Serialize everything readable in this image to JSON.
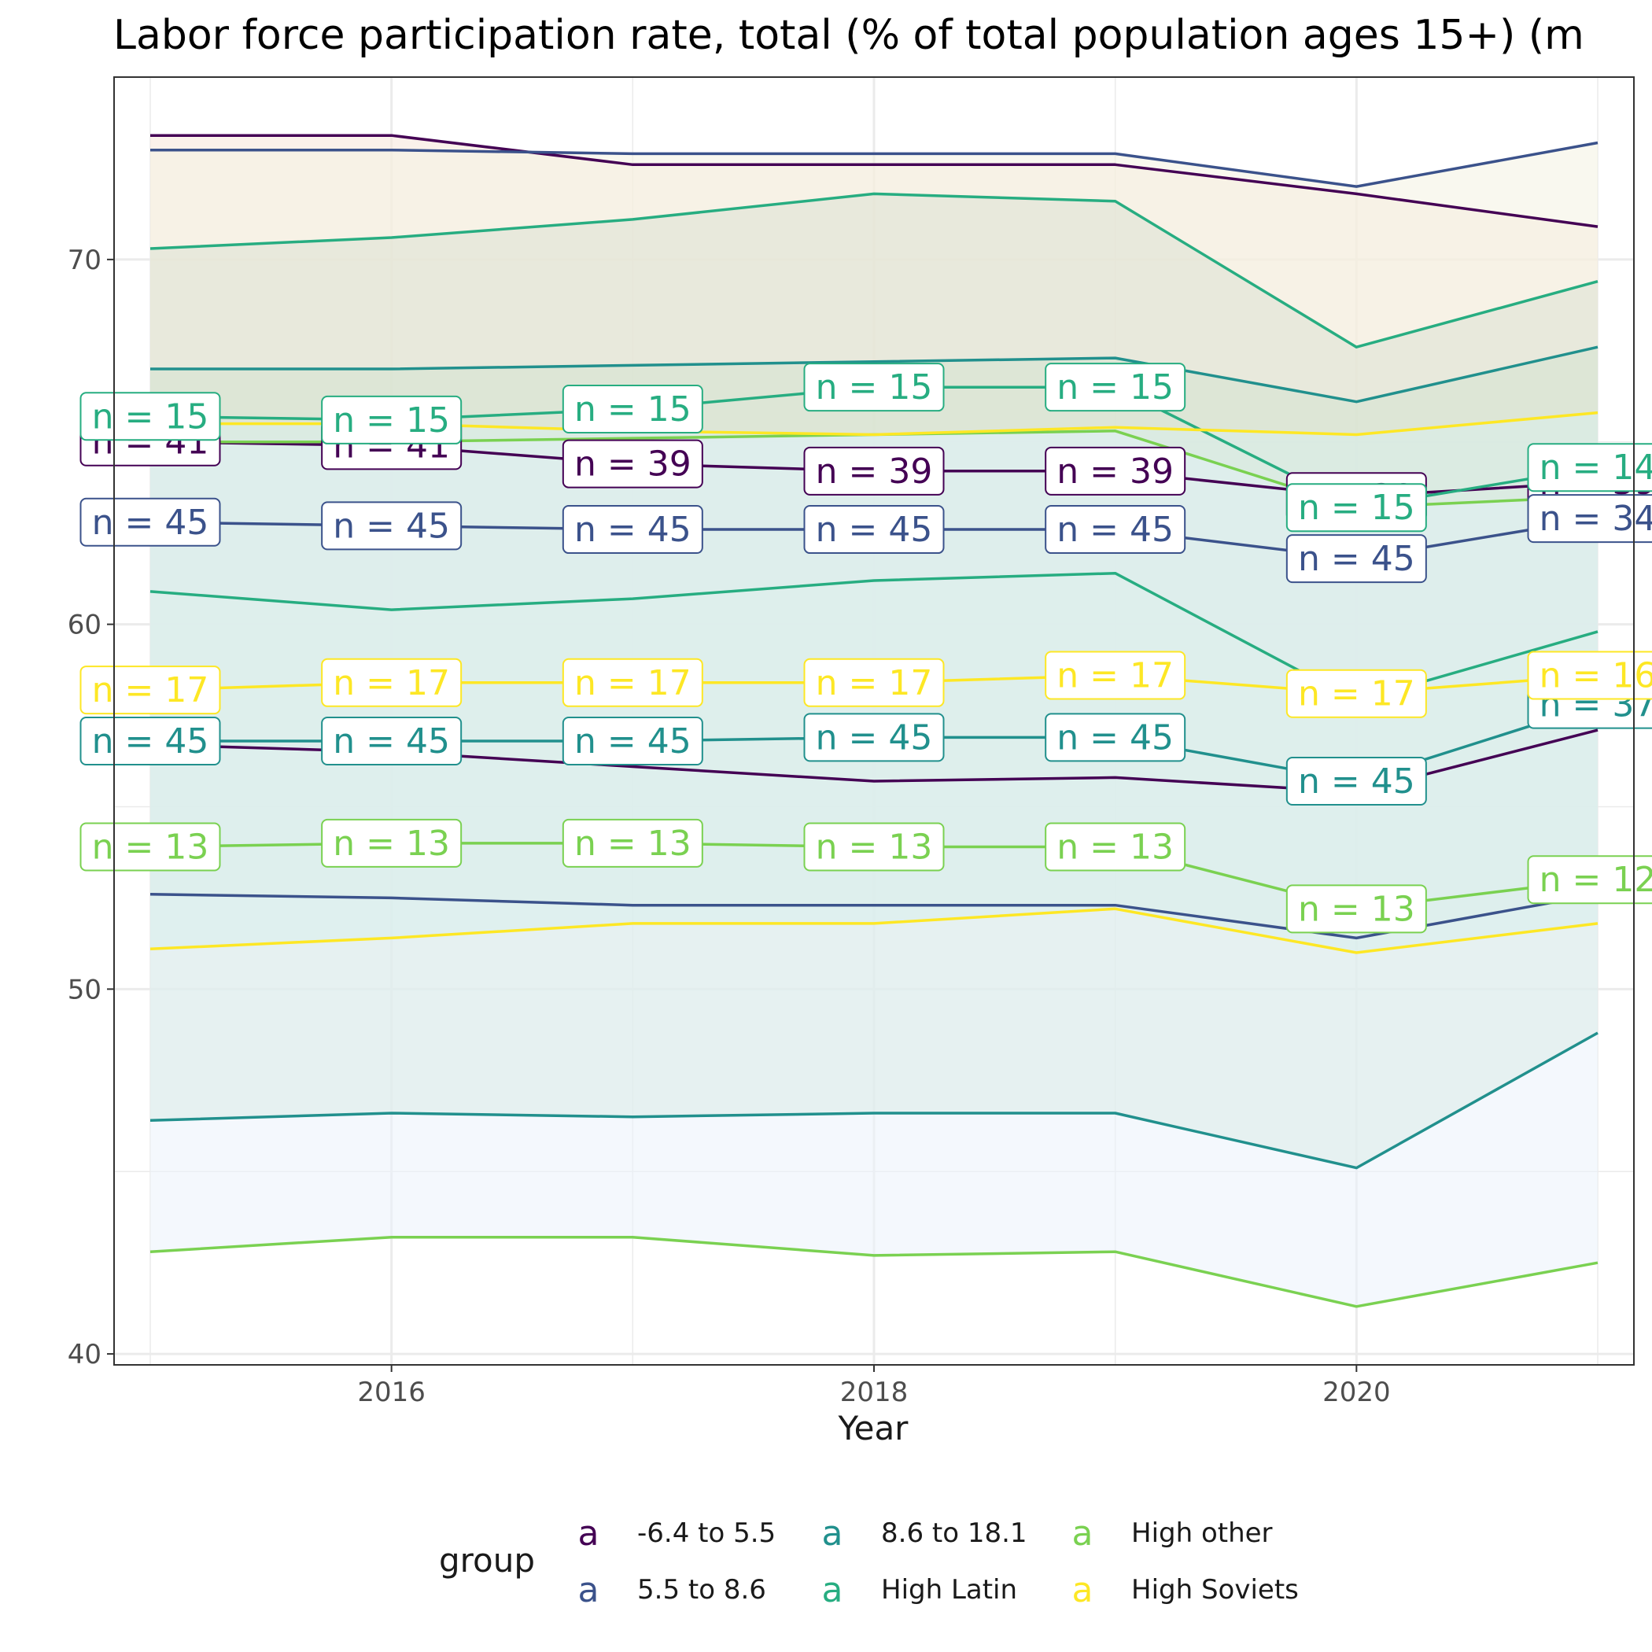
{
  "chart_data": {
    "type": "line",
    "title": "Labor force participation rate, total (% of total population ages 15+) (m",
    "xlabel": "Year",
    "ylabel": "",
    "xlim": [
      2014.85,
      2021.15
    ],
    "ylim": [
      39.7,
      75.0
    ],
    "x_ticks": [
      2016,
      2018,
      2020
    ],
    "x_tick_labels": [
      "2016",
      "2018",
      "2020"
    ],
    "y_ticks": [
      40,
      50,
      60,
      70
    ],
    "y_tick_labels": [
      "40",
      "50",
      "60",
      "70"
    ],
    "grid": true,
    "x": [
      2015,
      2016,
      2017,
      2018,
      2019,
      2020,
      2021
    ],
    "legend": {
      "title": "group",
      "position": "bottom",
      "key_glyph": "a",
      "entries": [
        "-6.4 to 5.5",
        "5.5 to 8.6",
        "8.6 to 18.1",
        "High Latin",
        "High other",
        "High Soviets"
      ]
    },
    "series": [
      {
        "name": "-6.4 to 5.5",
        "color": "#440154",
        "fill": "#f5e6d8",
        "upper": [
          73.4,
          73.4,
          72.6,
          72.6,
          72.6,
          71.8,
          70.9
        ],
        "median": [
          65.0,
          64.9,
          64.4,
          64.2,
          64.2,
          63.5,
          63.9
        ],
        "lower": [
          56.7,
          56.5,
          56.1,
          55.7,
          55.8,
          55.4,
          57.1
        ],
        "n_labels": [
          "n = 41",
          "n = 41",
          "n = 39",
          "n = 39",
          "n = 39",
          "n = 39",
          "n = 39"
        ]
      },
      {
        "name": "5.5 to 8.6",
        "color": "#3b528b",
        "fill": "#f4f2e2",
        "upper": [
          73.0,
          73.0,
          72.9,
          72.9,
          72.9,
          72.0,
          73.2
        ],
        "median": [
          62.8,
          62.7,
          62.6,
          62.6,
          62.6,
          61.8,
          62.9
        ],
        "lower": [
          52.6,
          52.5,
          52.3,
          52.3,
          52.3,
          51.4,
          52.6
        ],
        "n_labels": [
          "n = 45",
          "n = 45",
          "n = 45",
          "n = 45",
          "n = 45",
          "n = 45",
          "n = 34"
        ]
      },
      {
        "name": "8.6 to 18.1",
        "color": "#21908d",
        "fill": "#c8e4cd",
        "upper": [
          67.0,
          67.0,
          67.1,
          67.2,
          67.3,
          66.1,
          67.6
        ],
        "median": [
          56.8,
          56.8,
          56.8,
          56.9,
          56.9,
          55.7,
          57.8
        ],
        "lower": [
          46.4,
          46.6,
          46.5,
          46.6,
          46.6,
          45.1,
          48.8
        ],
        "n_labels": [
          "n = 45",
          "n = 45",
          "n = 45",
          "n = 45",
          "n = 45",
          "n = 45",
          "n = 37"
        ]
      },
      {
        "name": "High Latin",
        "color": "#27ad81",
        "fill": "#dde2d3",
        "upper": [
          70.3,
          70.6,
          71.1,
          71.8,
          71.6,
          67.6,
          69.4
        ],
        "median": [
          65.7,
          65.6,
          65.9,
          66.5,
          66.5,
          63.2,
          64.3
        ],
        "lower": [
          60.9,
          60.4,
          60.7,
          61.2,
          61.4,
          57.9,
          59.8
        ],
        "n_labels": [
          "n = 15",
          "n = 15",
          "n = 15",
          "n = 15",
          "n = 15",
          "n = 15",
          "n = 14"
        ]
      },
      {
        "name": "High other",
        "color": "#7ad151",
        "fill": "#ebf3fc",
        "upper": [
          65.0,
          65.0,
          65.1,
          65.2,
          65.3,
          63.2,
          63.5
        ],
        "median": [
          53.9,
          54.0,
          54.0,
          53.9,
          53.9,
          52.2,
          53.0
        ],
        "lower": [
          42.8,
          43.2,
          43.2,
          42.7,
          42.8,
          41.3,
          42.5
        ],
        "n_labels": [
          "n = 13",
          "n = 13",
          "n = 13",
          "n = 13",
          "n = 13",
          "n = 13",
          "n = 12"
        ]
      },
      {
        "name": "High Soviets",
        "color": "#fde725",
        "fill": "#d9efed",
        "upper": [
          65.5,
          65.5,
          65.3,
          65.2,
          65.4,
          65.2,
          65.8
        ],
        "median": [
          58.2,
          58.4,
          58.4,
          58.4,
          58.6,
          58.1,
          58.6
        ],
        "lower": [
          51.1,
          51.4,
          51.8,
          51.8,
          52.2,
          51.0,
          51.8
        ],
        "n_labels": [
          "n = 17",
          "n = 17",
          "n = 17",
          "n = 17",
          "n = 17",
          "n = 17",
          "n = 16"
        ]
      }
    ]
  }
}
